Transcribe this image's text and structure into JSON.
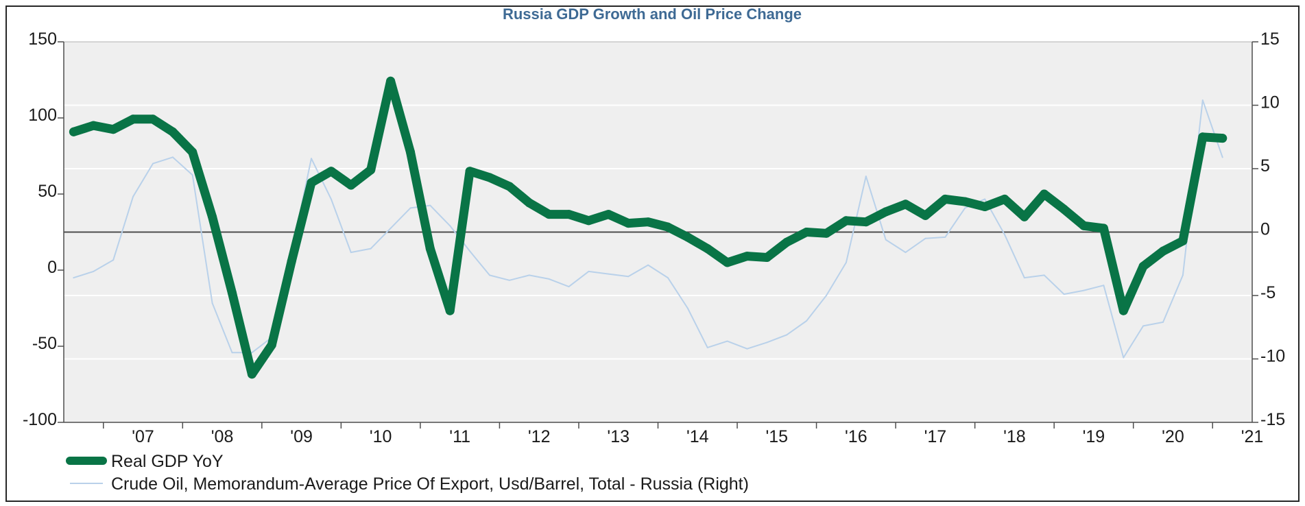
{
  "colors": {
    "title": "#3e6a94",
    "gdp": "#097446",
    "oil": "#b9d1ea"
  },
  "chart_data": {
    "type": "line",
    "title": "Russia GDP Growth and Oil Price Change",
    "x_tick_labels": [
      "'07",
      "'08",
      "'09",
      "'10",
      "'11",
      "'12",
      "'13",
      "'14",
      "'15",
      "'16",
      "'17",
      "'18",
      "'19",
      "'20",
      "'21"
    ],
    "x_tick_years": [
      2007,
      2008,
      2009,
      2010,
      2011,
      2012,
      2013,
      2014,
      2015,
      2016,
      2017,
      2018,
      2019,
      2020,
      2021
    ],
    "xlim": [
      2006.5,
      2021.5
    ],
    "y_left": {
      "lim": [
        -100,
        150
      ],
      "ticks": [
        150,
        100,
        50,
        0,
        -50,
        -100
      ]
    },
    "y_right": {
      "lim": [
        -15,
        15
      ],
      "ticks": [
        15,
        10,
        5,
        0,
        -5,
        -10,
        -15
      ]
    },
    "zero_line_right": 0,
    "legend": [
      "Real GDP YoY",
      "Crude Oil, Memorandum-Average Price Of Export, Usd/Barrel, Total - Russia (Right)"
    ],
    "legend_position": "bottom-left",
    "series": [
      {
        "name": "Real GDP YoY",
        "axis": "right",
        "points": [
          [
            2006.625,
            7.9
          ],
          [
            2006.875,
            8.4
          ],
          [
            2007.125,
            8.1
          ],
          [
            2007.375,
            8.9
          ],
          [
            2007.625,
            8.9
          ],
          [
            2007.875,
            7.9
          ],
          [
            2008.125,
            6.3
          ],
          [
            2008.375,
            1.2
          ],
          [
            2008.625,
            -4.8
          ],
          [
            2008.875,
            -11.2
          ],
          [
            2009.125,
            -8.9
          ],
          [
            2009.375,
            -2.3
          ],
          [
            2009.625,
            3.9
          ],
          [
            2009.875,
            4.8
          ],
          [
            2010.125,
            3.7
          ],
          [
            2010.375,
            4.9
          ],
          [
            2010.625,
            11.9
          ],
          [
            2010.875,
            6.3
          ],
          [
            2011.125,
            -1.3
          ],
          [
            2011.375,
            -6.2
          ],
          [
            2011.625,
            4.8
          ],
          [
            2011.875,
            4.3
          ],
          [
            2012.125,
            3.6
          ],
          [
            2012.375,
            2.3
          ],
          [
            2012.625,
            1.4
          ],
          [
            2012.875,
            1.4
          ],
          [
            2013.125,
            0.9
          ],
          [
            2013.375,
            1.4
          ],
          [
            2013.625,
            0.7
          ],
          [
            2013.875,
            0.8
          ],
          [
            2014.125,
            0.4
          ],
          [
            2014.375,
            -0.4
          ],
          [
            2014.625,
            -1.3
          ],
          [
            2014.875,
            -2.4
          ],
          [
            2015.125,
            -1.9
          ],
          [
            2015.375,
            -2.0
          ],
          [
            2015.625,
            -0.8
          ],
          [
            2015.875,
            0.0
          ],
          [
            2016.125,
            -0.1
          ],
          [
            2016.375,
            0.9
          ],
          [
            2016.625,
            0.8
          ],
          [
            2016.875,
            1.6
          ],
          [
            2017.125,
            2.2
          ],
          [
            2017.375,
            1.3
          ],
          [
            2017.625,
            2.6
          ],
          [
            2017.875,
            2.4
          ],
          [
            2018.125,
            2.0
          ],
          [
            2018.375,
            2.6
          ],
          [
            2018.625,
            1.2
          ],
          [
            2018.875,
            3.0
          ],
          [
            2019.125,
            1.8
          ],
          [
            2019.375,
            0.5
          ],
          [
            2019.625,
            0.3
          ],
          [
            2019.875,
            -6.2
          ],
          [
            2020.125,
            -2.7
          ],
          [
            2020.375,
            -1.5
          ],
          [
            2020.625,
            -0.7
          ],
          [
            2020.875,
            7.5
          ],
          [
            2021.125,
            7.4
          ]
        ]
      },
      {
        "name": "Crude Oil, Memorandum-Average Price Of Export, Usd/Barrel, Total - Russia (Right)",
        "axis": "right",
        "points": [
          [
            2006.625,
            -3.6
          ],
          [
            2006.875,
            -3.1
          ],
          [
            2007.125,
            -2.2
          ],
          [
            2007.375,
            2.8
          ],
          [
            2007.625,
            5.4
          ],
          [
            2007.875,
            5.9
          ],
          [
            2008.125,
            4.5
          ],
          [
            2008.375,
            -5.6
          ],
          [
            2008.625,
            -9.5
          ],
          [
            2008.875,
            -9.5
          ],
          [
            2009.125,
            -8.3
          ],
          [
            2009.375,
            -1.6
          ],
          [
            2009.625,
            5.8
          ],
          [
            2009.875,
            2.6
          ],
          [
            2010.125,
            -1.6
          ],
          [
            2010.375,
            -1.3
          ],
          [
            2010.625,
            0.3
          ],
          [
            2010.875,
            1.9
          ],
          [
            2011.125,
            2.1
          ],
          [
            2011.375,
            0.5
          ],
          [
            2011.625,
            -1.5
          ],
          [
            2011.875,
            -3.4
          ],
          [
            2012.125,
            -3.8
          ],
          [
            2012.375,
            -3.4
          ],
          [
            2012.625,
            -3.7
          ],
          [
            2012.875,
            -4.3
          ],
          [
            2013.125,
            -3.1
          ],
          [
            2013.375,
            -3.3
          ],
          [
            2013.625,
            -3.5
          ],
          [
            2013.875,
            -2.6
          ],
          [
            2014.125,
            -3.6
          ],
          [
            2014.375,
            -6.0
          ],
          [
            2014.625,
            -9.1
          ],
          [
            2014.875,
            -8.6
          ],
          [
            2015.125,
            -9.2
          ],
          [
            2015.375,
            -8.7
          ],
          [
            2015.625,
            -8.1
          ],
          [
            2015.875,
            -7.0
          ],
          [
            2016.125,
            -5.0
          ],
          [
            2016.375,
            -2.4
          ],
          [
            2016.625,
            4.4
          ],
          [
            2016.875,
            -0.6
          ],
          [
            2017.125,
            -1.6
          ],
          [
            2017.375,
            -0.5
          ],
          [
            2017.625,
            -0.4
          ],
          [
            2017.875,
            1.9
          ],
          [
            2018.125,
            2.6
          ],
          [
            2018.375,
            -0.2
          ],
          [
            2018.625,
            -3.6
          ],
          [
            2018.875,
            -3.4
          ],
          [
            2019.125,
            -4.9
          ],
          [
            2019.375,
            -4.6
          ],
          [
            2019.625,
            -4.2
          ],
          [
            2019.875,
            -9.9
          ],
          [
            2020.125,
            -7.4
          ],
          [
            2020.375,
            -7.1
          ],
          [
            2020.625,
            -3.4
          ],
          [
            2020.875,
            10.4
          ],
          [
            2021.125,
            5.9
          ]
        ]
      }
    ]
  }
}
